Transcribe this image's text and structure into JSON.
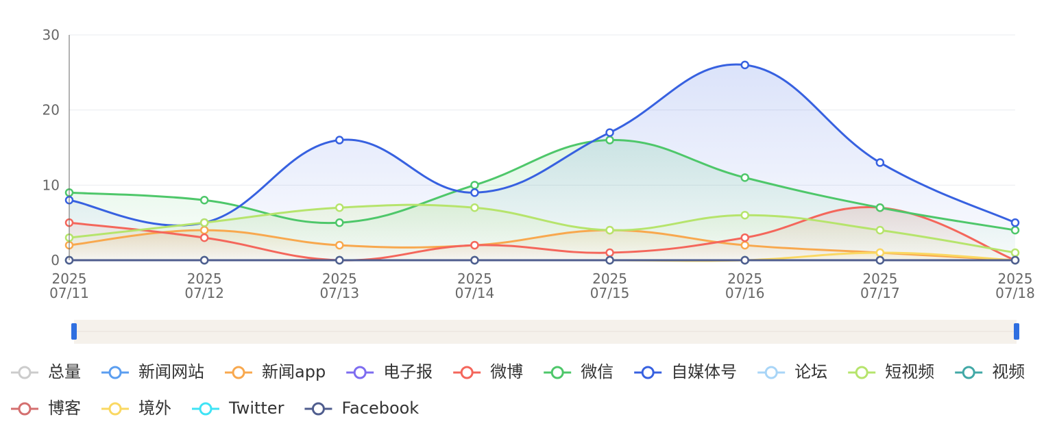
{
  "chart_data": {
    "type": "line",
    "smooth": true,
    "area": true,
    "grid": true,
    "categories": [
      [
        "2025",
        "07/11"
      ],
      [
        "2025",
        "07/12"
      ],
      [
        "2025",
        "07/13"
      ],
      [
        "2025",
        "07/14"
      ],
      [
        "2025",
        "07/15"
      ],
      [
        "2025",
        "07/16"
      ],
      [
        "2025",
        "07/17"
      ],
      [
        "2025",
        "07/18"
      ]
    ],
    "ylim": [
      0,
      30
    ],
    "yticks": [
      0,
      10,
      20,
      30
    ],
    "series": [
      {
        "name": "总量",
        "color": "#cccccc",
        "selected": false
      },
      {
        "name": "新闻网站",
        "color": "#5b9ef0",
        "values": [
          0,
          0,
          0,
          0,
          0,
          0,
          0,
          0
        ]
      },
      {
        "name": "新闻app",
        "color": "#f8a84e",
        "values": [
          2,
          4,
          2,
          2,
          4,
          2,
          1,
          0
        ]
      },
      {
        "name": "电子报",
        "color": "#7d6cf0",
        "values": [
          0,
          0,
          0,
          0,
          0,
          0,
          0,
          0
        ]
      },
      {
        "name": "微博",
        "color": "#f4665b",
        "values": [
          5,
          3,
          0,
          2,
          1,
          3,
          7,
          0
        ]
      },
      {
        "name": "微信",
        "color": "#4ec76a",
        "values": [
          9,
          8,
          5,
          10,
          16,
          11,
          7,
          4
        ]
      },
      {
        "name": "自媒体号",
        "color": "#3761e0",
        "values": [
          8,
          5,
          16,
          9,
          17,
          26,
          13,
          5
        ]
      },
      {
        "name": "论坛",
        "color": "#a8d5f7",
        "values": [
          0,
          0,
          0,
          0,
          0,
          0,
          0,
          0
        ]
      },
      {
        "name": "短视频",
        "color": "#b6e46c",
        "values": [
          3,
          5,
          7,
          7,
          4,
          6,
          4,
          1
        ]
      },
      {
        "name": "视频",
        "color": "#41a8a6",
        "values": [
          0,
          0,
          0,
          0,
          0,
          0,
          0,
          0
        ]
      },
      {
        "name": "博客",
        "color": "#d46f6f",
        "values": [
          0,
          0,
          0,
          0,
          0,
          0,
          0,
          0
        ]
      },
      {
        "name": "境外",
        "color": "#fad862",
        "values": [
          0,
          0,
          0,
          0,
          0,
          0,
          1,
          0
        ]
      },
      {
        "name": "Twitter",
        "color": "#3fe3f5",
        "values": [
          0,
          0,
          0,
          0,
          0,
          0,
          0,
          0
        ]
      },
      {
        "name": "Facebook",
        "color": "#4f5d8e",
        "values": [
          0,
          0,
          0,
          0,
          0,
          0,
          0,
          0
        ]
      }
    ]
  }
}
